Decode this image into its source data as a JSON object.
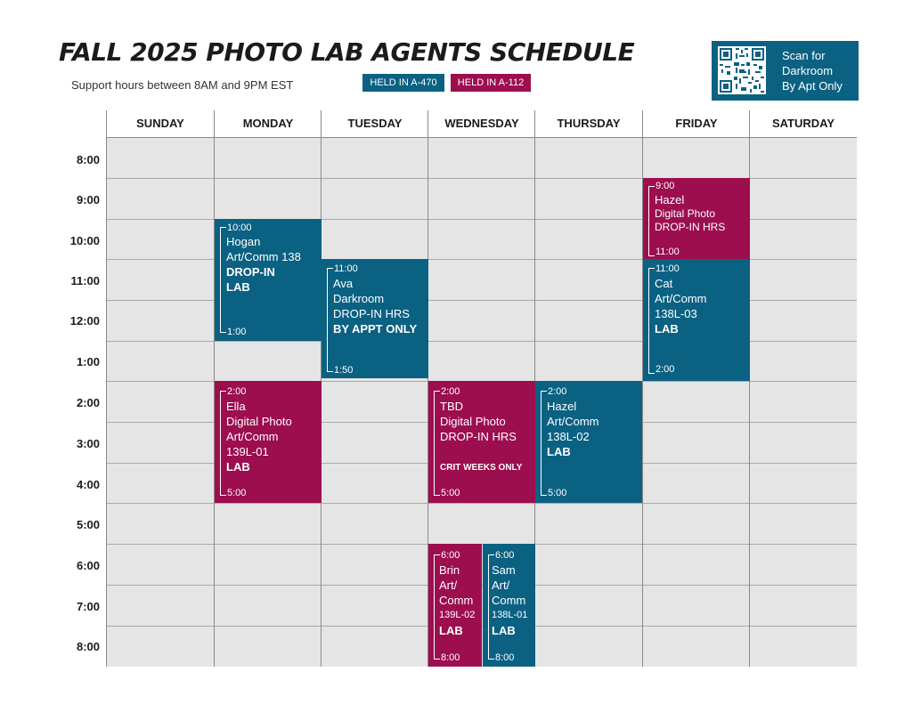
{
  "header": {
    "title": "FALL 2025 PHOTO LAB AGENTS SCHEDULE",
    "subtitle": "Support hours between 8AM and 9PM EST",
    "legend": {
      "blue": "HELD IN A-470",
      "red": "HELD IN A-112"
    },
    "qr": {
      "line1": "Scan for",
      "line2": "Darkroom",
      "line3": "By Apt Only"
    }
  },
  "colors": {
    "blue": "#0b6182",
    "red": "#9c0e4e",
    "grid_bg": "#e5e5e5"
  },
  "days": [
    "SUNDAY",
    "MONDAY",
    "TUESDAY",
    "WEDNESDAY",
    "THURSDAY",
    "FRIDAY",
    "SATURDAY"
  ],
  "hours": [
    "8:00",
    "9:00",
    "10:00",
    "11:00",
    "12:00",
    "1:00",
    "2:00",
    "3:00",
    "4:00",
    "5:00",
    "6:00",
    "7:00",
    "8:00"
  ],
  "events": {
    "mon_hogan": {
      "start": "10:00",
      "end": "1:00",
      "line1": "Hogan",
      "line2": "Art/Comm 138",
      "line3": "DROP-IN",
      "line4": "LAB"
    },
    "tue_ava": {
      "start": "11:00",
      "end": "1:50",
      "line1": "Ava",
      "line2": "Darkroom",
      "line3": "DROP-IN HRS",
      "line4": "BY APPT ONLY"
    },
    "fri_hazel": {
      "start": "9:00",
      "end": "11:00",
      "line1": "Hazel",
      "line2": "Digital Photo",
      "line3": "DROP-IN HRS"
    },
    "fri_cat": {
      "start": "11:00",
      "end": "2:00",
      "line1": "Cat",
      "line2": "Art/Comm",
      "line3": "138L-03",
      "line4": "LAB"
    },
    "mon_ella": {
      "start": "2:00",
      "end": "5:00",
      "line1": "Ella",
      "line2": "Digital Photo",
      "line3": "Art/Comm",
      "line4": "139L-01",
      "line5": "LAB"
    },
    "wed_tbd": {
      "start": "2:00",
      "end": "5:00",
      "line1": "TBD",
      "line2": "Digital Photo",
      "line3": "DROP-IN HRS",
      "note": "CRIT WEEKS ONLY"
    },
    "thu_hazel": {
      "start": "2:00",
      "end": "5:00",
      "line1": "Hazel",
      "line2": "Art/Comm",
      "line3": "138L-02",
      "line4": "LAB"
    },
    "wed_brin": {
      "start": "6:00",
      "end": "8:00",
      "line1": "Brin",
      "line2": "Art/",
      "line3": "Comm",
      "line4": "139L-02",
      "line5": "LAB"
    },
    "wed_sam": {
      "start": "6:00",
      "end": "8:00",
      "line1": "Sam",
      "line2": "Art/",
      "line3": "Comm",
      "line4": "138L-01",
      "line5": "LAB"
    }
  }
}
